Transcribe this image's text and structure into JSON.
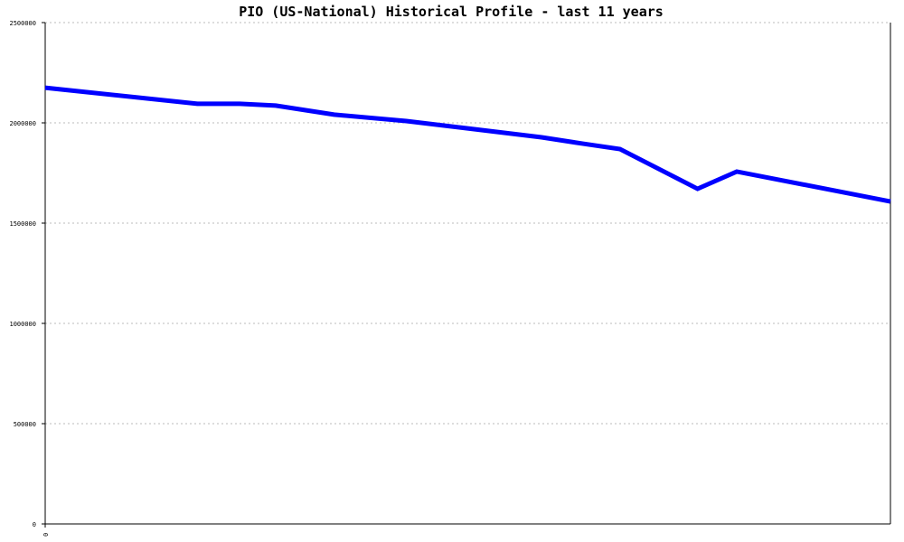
{
  "chart_data": {
    "type": "line",
    "title": "PIO (US-National) Historical Profile - last 11 years",
    "xlabel": "",
    "ylabel": "",
    "xlim": [
      0,
      11
    ],
    "ylim": [
      0,
      2500000
    ],
    "x_tick_labels": [
      "0"
    ],
    "y_tick_labels": [
      "0",
      "500000",
      "1000000",
      "1500000",
      "2000000",
      "2500000"
    ],
    "y_ticks": [
      0,
      500000,
      1000000,
      1500000,
      2000000,
      2500000
    ],
    "grid": "horizontal dotted",
    "legend": "none",
    "line_color": "#0000ff",
    "series": [
      {
        "x": [
          0,
          1.98,
          2.53,
          3.0,
          3.76,
          4.7,
          5.4,
          6.46,
          7.0,
          7.48,
          8.49,
          9.0,
          11.0
        ],
        "values": [
          2175000,
          2095000,
          2095000,
          2086000,
          2041000,
          2009000,
          1977000,
          1928000,
          1896000,
          1869000,
          1671000,
          1757000,
          1608000
        ]
      }
    ]
  }
}
